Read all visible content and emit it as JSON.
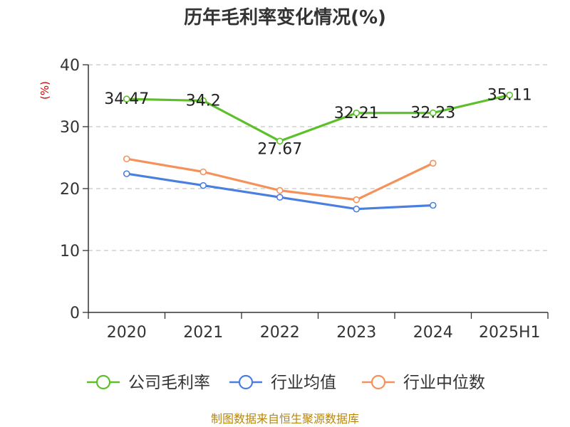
{
  "chart_data": {
    "type": "line",
    "title": "历年毛利率变化情况(%)",
    "ylabel": "(%)",
    "xlabel": "",
    "categories": [
      "2020",
      "2021",
      "2022",
      "2023",
      "2024",
      "2025H1"
    ],
    "ylim": [
      0,
      40
    ],
    "yticks": [
      0,
      10,
      20,
      30,
      40
    ],
    "grid": true,
    "legend_position": "bottom",
    "series": [
      {
        "name": "公司毛利率",
        "color": "#5dbf2a",
        "values": [
          34.47,
          34.2,
          27.67,
          32.21,
          32.23,
          35.11
        ],
        "labels": [
          "34.47",
          "34.2",
          "27.67",
          "32.21",
          "32.23",
          "35.11"
        ]
      },
      {
        "name": "行业均值",
        "color": "#4a7fe0",
        "values": [
          22.4,
          20.5,
          18.6,
          16.7,
          17.3,
          null
        ]
      },
      {
        "name": "行业中位数",
        "color": "#f5915a",
        "values": [
          24.8,
          22.7,
          19.7,
          18.2,
          24.1,
          null
        ]
      }
    ]
  },
  "source": "制图数据来自恒生聚源数据库"
}
